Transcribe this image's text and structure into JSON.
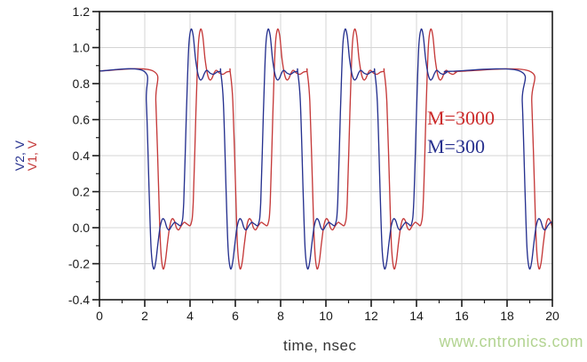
{
  "watermark": {
    "text": "www.cntronics.com",
    "color": "#b3d492"
  },
  "chart_data": {
    "type": "line",
    "title": "",
    "xlabel": "time, nsec",
    "ylabel_parts": [
      {
        "text": "V2, V",
        "color": "#26318f"
      },
      {
        "text": "V1, V",
        "color": "#c53a3a"
      }
    ],
    "x_range": [
      0,
      20
    ],
    "y_range": [
      -0.4,
      1.2
    ],
    "x_ticks": [
      0,
      2,
      4,
      6,
      8,
      10,
      12,
      14,
      16,
      18,
      20
    ],
    "x_minor_ticks": [
      1,
      3,
      5,
      7,
      9,
      11,
      13,
      15,
      17,
      19
    ],
    "y_ticks": [
      -0.4,
      -0.2,
      0.0,
      0.2,
      0.4,
      0.6,
      0.8,
      1.0,
      1.2
    ],
    "y_minor_ticks": [
      -0.3,
      -0.1,
      0.1,
      0.3,
      0.5,
      0.7,
      0.9,
      1.1
    ],
    "grid": true,
    "grid_color": "#d4d4d4",
    "frame_color": "#1a1a1a",
    "legend_position": "inside-right",
    "annotations": [
      {
        "text": "M=3000",
        "color": "#cc2b2b"
      },
      {
        "text": "M=300",
        "color": "#28318f"
      }
    ],
    "series": [
      {
        "name": "V1",
        "label": "M=3000",
        "color": "#c53a3a",
        "delay_ns": 0.42
      },
      {
        "name": "V2",
        "label": "M=300",
        "color": "#26318f",
        "delay_ns": 0.0
      }
    ],
    "waveform": {
      "high_level": 0.87,
      "low_level": 0.02,
      "overshoot_peak": 1.1,
      "undershoot_min": -0.225,
      "fall_corner_times_ns": [
        1.95,
        5.35,
        8.75,
        12.15,
        18.55
      ],
      "rise_corner_times_ns": [
        3.62,
        7.02,
        10.42,
        13.78
      ],
      "fall_shape": [
        [
          0,
          0.87
        ],
        [
          0.12,
          0.7
        ],
        [
          0.24,
          0.22
        ],
        [
          0.33,
          -0.11
        ],
        [
          0.43,
          -0.225
        ],
        [
          0.53,
          -0.195
        ],
        [
          0.63,
          -0.09
        ],
        [
          0.73,
          0.005
        ],
        [
          0.83,
          0.048
        ],
        [
          0.93,
          0.04
        ],
        [
          1.03,
          0.0
        ],
        [
          1.13,
          -0.012
        ],
        [
          1.25,
          0.012
        ],
        [
          1.38,
          0.03
        ],
        [
          1.5,
          0.02
        ]
      ],
      "rise_shape": [
        [
          0,
          0.02
        ],
        [
          0.1,
          0.14
        ],
        [
          0.22,
          0.64
        ],
        [
          0.32,
          1.0
        ],
        [
          0.42,
          1.1
        ],
        [
          0.52,
          1.065
        ],
        [
          0.62,
          0.94
        ],
        [
          0.72,
          0.858
        ],
        [
          0.82,
          0.822
        ],
        [
          0.92,
          0.828
        ],
        [
          1.02,
          0.858
        ],
        [
          1.12,
          0.874
        ],
        [
          1.27,
          0.858
        ],
        [
          1.42,
          0.852
        ],
        [
          1.57,
          0.864
        ],
        [
          1.72,
          0.868
        ]
      ]
    }
  }
}
